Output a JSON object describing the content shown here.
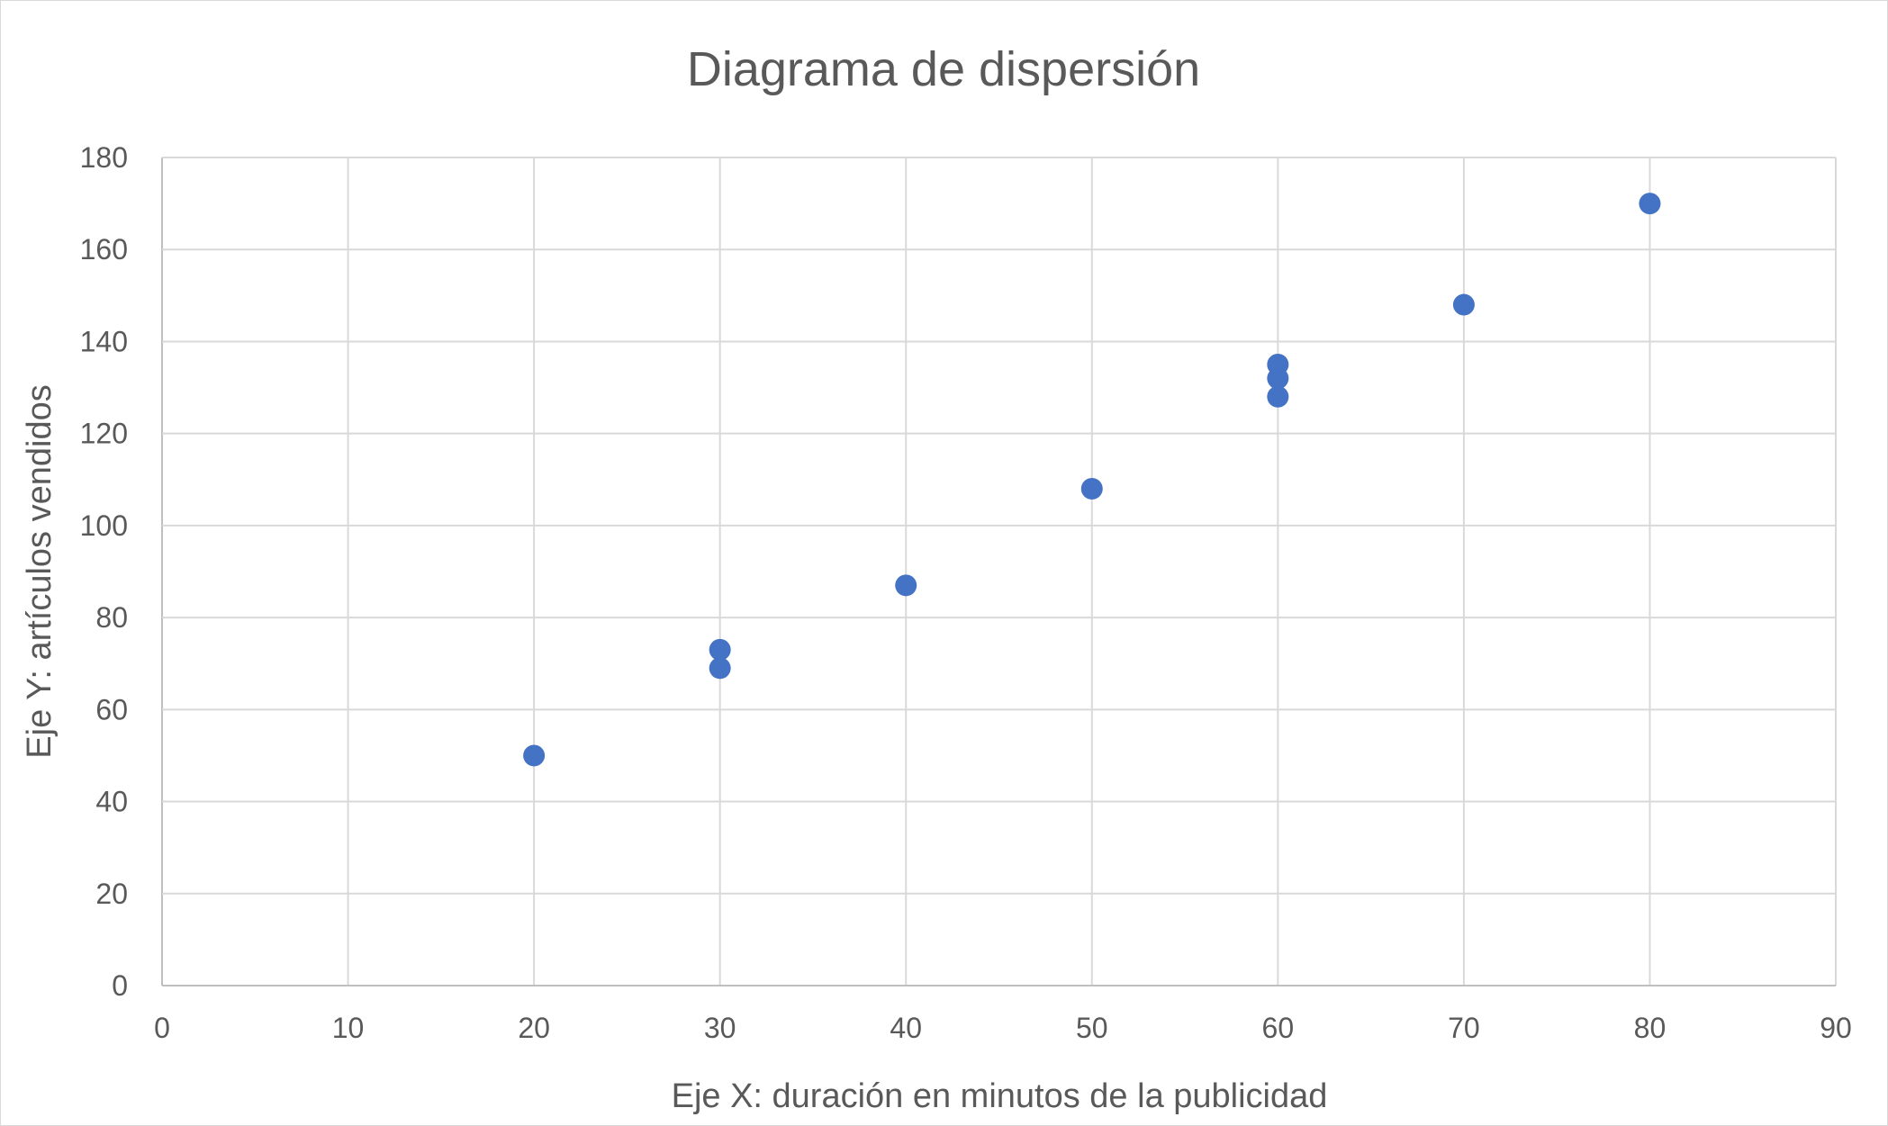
{
  "chart_data": {
    "type": "scatter",
    "title": "Diagrama de dispersión",
    "xlabel": "Eje X: duración en minutos de la publicidad",
    "ylabel": "Eje Y: artículos vendidos",
    "xlim": [
      0,
      90
    ],
    "ylim": [
      0,
      180
    ],
    "xticks": [
      "0",
      "10",
      "20",
      "30",
      "40",
      "50",
      "60",
      "70",
      "80",
      "90"
    ],
    "yticks": [
      "0",
      "20",
      "40",
      "60",
      "80",
      "100",
      "120",
      "140",
      "160",
      "180"
    ],
    "grid": true,
    "legend": "none",
    "marker_color": "#4472C4",
    "points": [
      {
        "x": 20,
        "y": 50
      },
      {
        "x": 30,
        "y": 73
      },
      {
        "x": 30,
        "y": 69
      },
      {
        "x": 40,
        "y": 87
      },
      {
        "x": 50,
        "y": 108
      },
      {
        "x": 60,
        "y": 135
      },
      {
        "x": 60,
        "y": 132
      },
      {
        "x": 60,
        "y": 128
      },
      {
        "x": 70,
        "y": 148
      },
      {
        "x": 80,
        "y": 170
      }
    ]
  }
}
